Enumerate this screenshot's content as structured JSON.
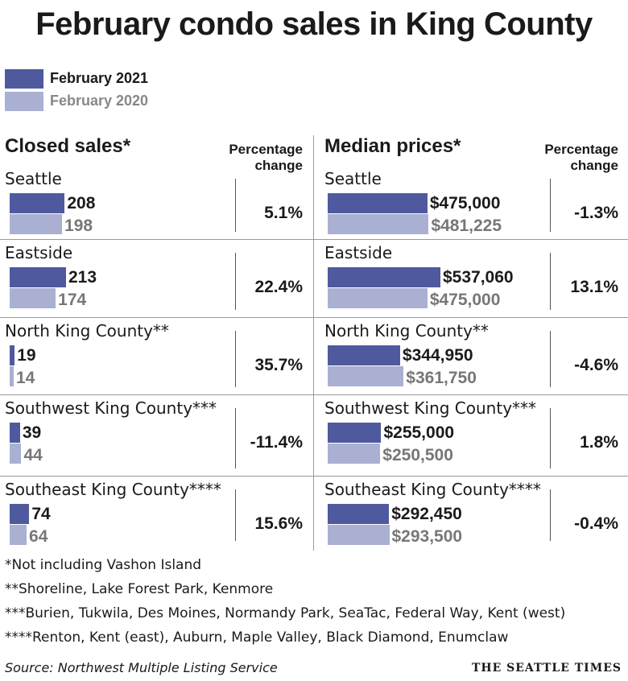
{
  "title": "February condo sales in King County",
  "legend": [
    {
      "label": "February 2021",
      "color": "#4f5a9e"
    },
    {
      "label": "February 2020",
      "color": "#a9b0d2"
    }
  ],
  "chart_data": [
    {
      "type": "bar",
      "title": "Closed sales*",
      "change_header": "Percentage change",
      "xlim": [
        0,
        213
      ],
      "series": [
        {
          "name": "February 2021",
          "values": [
            208,
            213,
            19,
            39,
            74
          ]
        },
        {
          "name": "February 2020",
          "values": [
            198,
            174,
            14,
            44,
            64
          ]
        }
      ],
      "categories": [
        "Seattle",
        "Eastside",
        "North King County**",
        "Southwest King County***",
        "Southeast King County****"
      ],
      "rows": [
        {
          "region": "Seattle",
          "v2021": 208,
          "v2020": 198,
          "label2021": "208",
          "label2020": "198",
          "change": "5.1%"
        },
        {
          "region": "Eastside",
          "v2021": 213,
          "v2020": 174,
          "label2021": "213",
          "label2020": "174",
          "change": "22.4%"
        },
        {
          "region": "North King County**",
          "v2021": 19,
          "v2020": 14,
          "label2021": "19",
          "label2020": "14",
          "change": "35.7%"
        },
        {
          "region": "Southwest King County***",
          "v2021": 39,
          "v2020": 44,
          "label2021": "39",
          "label2020": "44",
          "change": "-11.4%"
        },
        {
          "region": "Southeast King County****",
          "v2021": 74,
          "v2020": 64,
          "label2021": "74",
          "label2020": "64",
          "change": "15.6%"
        }
      ]
    },
    {
      "type": "bar",
      "title": "Median prices*",
      "change_header": "Percentage change",
      "xlim": [
        0,
        537060
      ],
      "series": [
        {
          "name": "February 2021",
          "values": [
            475000,
            537060,
            344950,
            255000,
            292450
          ]
        },
        {
          "name": "February 2020",
          "values": [
            481225,
            475000,
            361750,
            250500,
            293500
          ]
        }
      ],
      "categories": [
        "Seattle",
        "Eastside",
        "North King County**",
        "Southwest King County***",
        "Southeast King County****"
      ],
      "rows": [
        {
          "region": "Seattle",
          "v2021": 475000,
          "v2020": 481225,
          "label2021": "$475,000",
          "label2020": "$481,225",
          "change": "-1.3%"
        },
        {
          "region": "Eastside",
          "v2021": 537060,
          "v2020": 475000,
          "label2021": "$537,060",
          "label2020": "$475,000",
          "change": "13.1%"
        },
        {
          "region": "North King County**",
          "v2021": 344950,
          "v2020": 361750,
          "label2021": "$344,950",
          "label2020": "$361,750",
          "change": "-4.6%"
        },
        {
          "region": "Southwest King County***",
          "v2021": 255000,
          "v2020": 250500,
          "label2021": "$255,000",
          "label2020": "$250,500",
          "change": "1.8%"
        },
        {
          "region": "Southeast King County****",
          "v2021": 292450,
          "v2020": 293500,
          "label2021": "$292,450",
          "label2020": "$293,500",
          "change": "-0.4%"
        }
      ]
    }
  ],
  "footnotes": [
    "*Not including Vashon Island",
    "**Shoreline, Lake Forest Park, Kenmore",
    "***Burien, Tukwila, Des Moines, Normandy Park, SeaTac, Federal Way, Kent (west)",
    "****Renton, Kent (east), Auburn, Maple Valley, Black Diamond, Enumclaw"
  ],
  "source": "Source: Northwest Multiple Listing Service",
  "credit": "THE SEATTLE TIMES"
}
